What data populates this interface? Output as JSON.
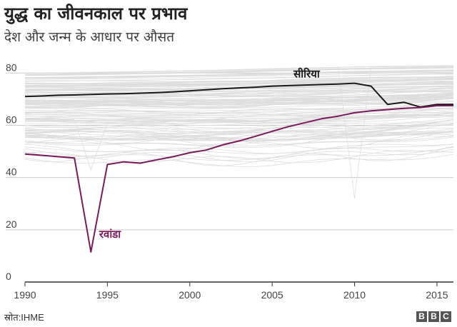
{
  "header": {
    "title": "युद्ध का जीवनकाल पर प्रभाव",
    "subtitle": "देश और जन्म के आधार पर औसत"
  },
  "footer": {
    "source": "स्रोत:IHME",
    "logo_letters": [
      "B",
      "B",
      "C"
    ]
  },
  "colors": {
    "syria": "#1a1a1a",
    "rwanda": "#7a1a5a",
    "background_series": "#dddddd",
    "axis": "#333333"
  },
  "chart_data": {
    "type": "line",
    "xlim": [
      1990,
      2016
    ],
    "ylim": [
      0,
      85
    ],
    "x_ticks": [
      1990,
      1995,
      2000,
      2005,
      2010,
      2015
    ],
    "y_ticks": [
      0,
      20,
      40,
      60,
      80
    ],
    "grid": "horizontal",
    "background_series_note": "many unlabelled grey lines, one per country",
    "background_band": {
      "x": [
        1990,
        1995,
        2000,
        2005,
        2010,
        2016
      ],
      "upper": [
        80,
        80.5,
        81,
        81.8,
        82.5,
        83
      ],
      "lower": [
        47,
        46,
        45,
        45,
        46,
        49
      ]
    },
    "series": [
      {
        "name": "सीरिया",
        "color": "#1a1a1a",
        "x": [
          1990,
          1991,
          1992,
          1993,
          1994,
          1995,
          1996,
          1997,
          1998,
          1999,
          2000,
          2001,
          2002,
          2003,
          2004,
          2005,
          2006,
          2007,
          2008,
          2009,
          2010,
          2011,
          2012,
          2013,
          2014,
          2015,
          2016
        ],
        "y": [
          71,
          71.2,
          71.5,
          71.6,
          71.8,
          72,
          72.1,
          72.3,
          72.5,
          72.8,
          73.2,
          73.6,
          74,
          74.3,
          74.6,
          75,
          75.2,
          75.4,
          75.6,
          75.8,
          76.1,
          75,
          68,
          68.8,
          67,
          68,
          68
        ]
      },
      {
        "name": "रवांडा",
        "color": "#7a1a5a",
        "x": [
          1990,
          1991,
          1992,
          1993,
          1994,
          1995,
          1996,
          1997,
          1998,
          1999,
          2000,
          2001,
          2002,
          2003,
          2004,
          2005,
          2006,
          2007,
          2008,
          2009,
          2010,
          2011,
          2012,
          2013,
          2014,
          2015,
          2016
        ],
        "y": [
          49,
          48.5,
          48,
          47.5,
          11.5,
          45,
          46,
          45.5,
          46.8,
          48,
          49.5,
          50.5,
          52.5,
          54,
          55.8,
          57.7,
          59.5,
          61,
          62.5,
          63.5,
          64.8,
          65.5,
          66,
          66.5,
          66.8,
          67.5,
          67.5
        ]
      }
    ],
    "annotations": [
      {
        "series": "सीरिया",
        "text": "सीरिया"
      },
      {
        "series": "रवांडा",
        "text": "रवांडा"
      }
    ]
  }
}
